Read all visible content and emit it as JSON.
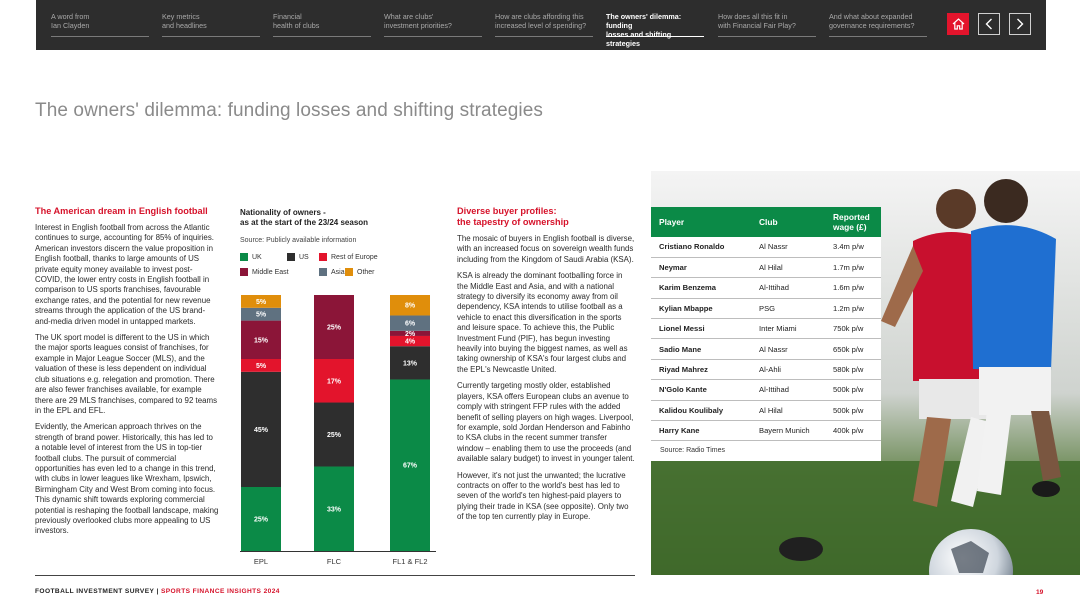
{
  "nav": {
    "tabs": [
      {
        "line1": "A word from",
        "line2": "Ian Clayden"
      },
      {
        "line1": "Key metrics",
        "line2": "and headlines"
      },
      {
        "line1": "Financial",
        "line2": "health of clubs"
      },
      {
        "line1": "What are clubs'",
        "line2": "investment priorities?"
      },
      {
        "line1": "How are clubs affording this",
        "line2": "increased level of spending?"
      },
      {
        "line1": "The owners' dilemma: funding",
        "line2": "losses and shifting strategies"
      },
      {
        "line1": "How does all this fit in",
        "line2": "with Financial Fair Play?"
      },
      {
        "line1": "And what about expanded",
        "line2": "governance requirements?"
      }
    ],
    "active_index": 5
  },
  "page_title": "The owners' dilemma: funding losses and shifting strategies",
  "col1": {
    "heading": "The American dream in English football",
    "p1": "Interest in English football from across the Atlantic continues to surge, accounting for 85% of inquiries. American investors discern the value proposition in English football, thanks to large amounts of US private equity money available to invest post-COVID, the lower entry costs in English football in comparison to US sports franchises, favourable exchange rates, and the potential for new revenue streams through the application of the US brand-and-media driven model in untapped markets.",
    "p2": "The UK sport model is different to the US in which the major sports leagues consist of franchises, for example in Major League Soccer (MLS), and the valuation of these is less dependent on individual club situations e.g. relegation and promotion. There are also fewer franchises available, for example there are 29 MLS franchises, compared to 92 teams in the EPL and EFL.",
    "p3": "Evidently, the American approach thrives on the strength of brand power. Historically, this has led to a notable level of interest from the US in top-tier football clubs. The pursuit of commercial opportunities has even led to a change in this trend, with clubs in lower leagues like Wrexham, Ipswich, Birmingham City and West Brom coming into focus. This dynamic shift towards exploring commercial potential is reshaping the football landscape, making previously overlooked clubs more appealing to US investors."
  },
  "chart_data": {
    "type": "bar",
    "stacked": true,
    "title": "Nationality of owners - as at the start of the 23/24 season",
    "title_line1": "Nationality of owners -",
    "title_line2": "as at the start of the 23/24 season",
    "source": "Source: Publicly available information",
    "categories": [
      "EPL",
      "FLC",
      "FL1 & FL2"
    ],
    "ylim": [
      0,
      100
    ],
    "series": [
      {
        "name": "UK",
        "color": "#0b8a47",
        "values": [
          25,
          33,
          67
        ]
      },
      {
        "name": "US",
        "color": "#2e2e2e",
        "values": [
          45,
          25,
          13
        ]
      },
      {
        "name": "Rest of Europe",
        "color": "#e3142c",
        "values": [
          5,
          17,
          4
        ]
      },
      {
        "name": "Middle East",
        "color": "#8b1538",
        "values": [
          15,
          25,
          2
        ]
      },
      {
        "name": "Asia",
        "color": "#5f7180",
        "values": [
          5,
          0,
          6
        ]
      },
      {
        "name": "Other",
        "color": "#e08e0b",
        "values": [
          5,
          0,
          8
        ]
      }
    ]
  },
  "col3": {
    "heading1": "Diverse buyer profiles:",
    "heading2": "the tapestry of ownership",
    "p1": "The mosaic of buyers in English football is diverse, with an increased focus on sovereign wealth funds including from the Kingdom of Saudi Arabia (KSA).",
    "p2": "KSA is already the dominant footballing force in the Middle East and Asia, and with a national strategy to diversify its economy away from oil dependency, KSA intends to utilise football as a vehicle to enact this diversification in the sports and leisure space. To achieve this, the Public Investment Fund (PIF), has begun investing heavily into buying the biggest names, as well as taking ownership of KSA's four largest clubs and the EPL's Newcastle United.",
    "p3": "Currently targeting mostly older, established players, KSA offers European clubs an avenue to comply with stringent FFP rules with the added benefit of selling players on high wages. Liverpool, for example, sold Jordan Henderson and Fabinho to KSA clubs in the recent summer transfer window – enabling them to use the proceeds (and available salary budget) to invest in younger talent.",
    "p4": "However, it's not just the unwanted; the lucrative contracts on offer to the world's best has led to seven of the world's ten highest-paid players to plying their trade in KSA (see opposite). Only two of the top ten currently play in Europe."
  },
  "wage_table": {
    "headers": {
      "player": "Player",
      "club": "Club",
      "wage1": "Reported",
      "wage2": "wage (£)"
    },
    "rows": [
      {
        "player": "Cristiano Ronaldo",
        "club": "Al Nassr",
        "wage": "3.4m p/w"
      },
      {
        "player": "Neymar",
        "club": "Al Hilal",
        "wage": "1.7m p/w"
      },
      {
        "player": "Karim Benzema",
        "club": "Al-Ittihad",
        "wage": "1.6m p/w"
      },
      {
        "player": "Kylian Mbappe",
        "club": "PSG",
        "wage": "1.2m p/w"
      },
      {
        "player": "Lionel Messi",
        "club": "Inter Miami",
        "wage": "750k p/w"
      },
      {
        "player": "Sadio Mane",
        "club": "Al Nassr",
        "wage": "650k p/w"
      },
      {
        "player": "Riyad Mahrez",
        "club": "Al-Ahli",
        "wage": "580k p/w"
      },
      {
        "player": "N'Golo Kante",
        "club": "Al-Ittihad",
        "wage": "500k p/w"
      },
      {
        "player": "Kalidou Koulibaly",
        "club": "Al Hilal",
        "wage": "500k p/w"
      },
      {
        "player": "Harry Kane",
        "club": "Bayern Munich",
        "wage": "400k p/w"
      }
    ],
    "source": "Source: Radio Times"
  },
  "footer": {
    "left": "FOOTBALL INVESTMENT SURVEY",
    "sep": "|",
    "right": "SPORTS FINANCE INSIGHTS 2024",
    "page": "19"
  },
  "colors": {
    "accent_red": "#e3142c",
    "nav_bg": "#2d2d2d",
    "table_green": "#0b8a47"
  }
}
